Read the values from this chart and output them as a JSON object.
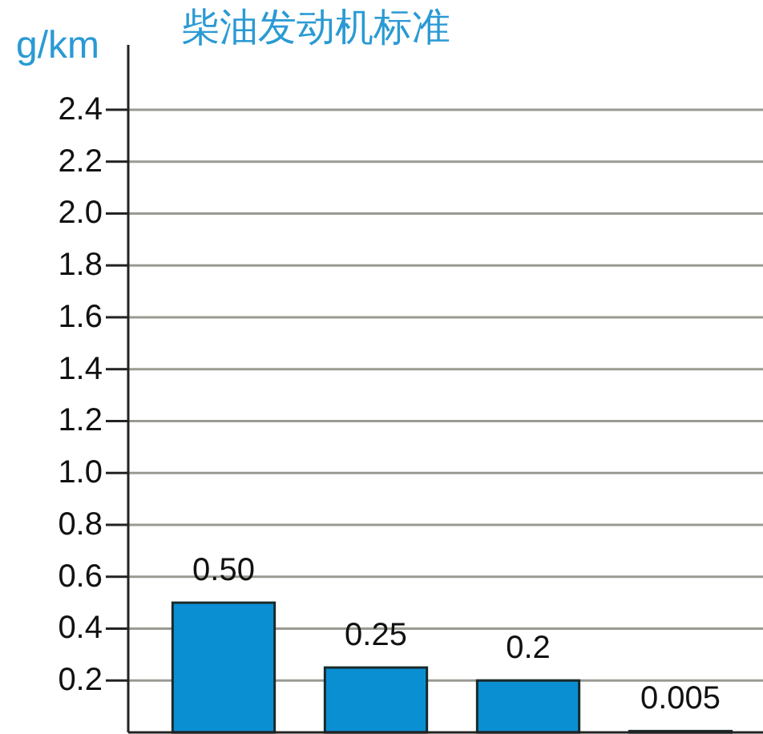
{
  "chart_data": {
    "type": "bar",
    "title": "柴油发动机标准",
    "ylabel": "g/km",
    "categories": [
      null,
      null,
      null,
      null
    ],
    "values": [
      0.5,
      0.25,
      0.2,
      0.005
    ],
    "colors": [
      "#0b8fd3",
      "#0b8fd3",
      "#0b8fd3",
      "#2e4a4c"
    ],
    "value_labels": [
      "0.50",
      "0.25",
      "0.2",
      "0.005"
    ],
    "ylim": [
      0,
      2.65
    ],
    "yticks": [
      0.2,
      0.4,
      0.6,
      0.8,
      {
        "value": 1,
        "label": "1.0"
      },
      1.2,
      1.4,
      1.6,
      1.8,
      {
        "value": 2,
        "label": "2.0"
      },
      2.2,
      2.4
    ],
    "grid": "y"
  }
}
